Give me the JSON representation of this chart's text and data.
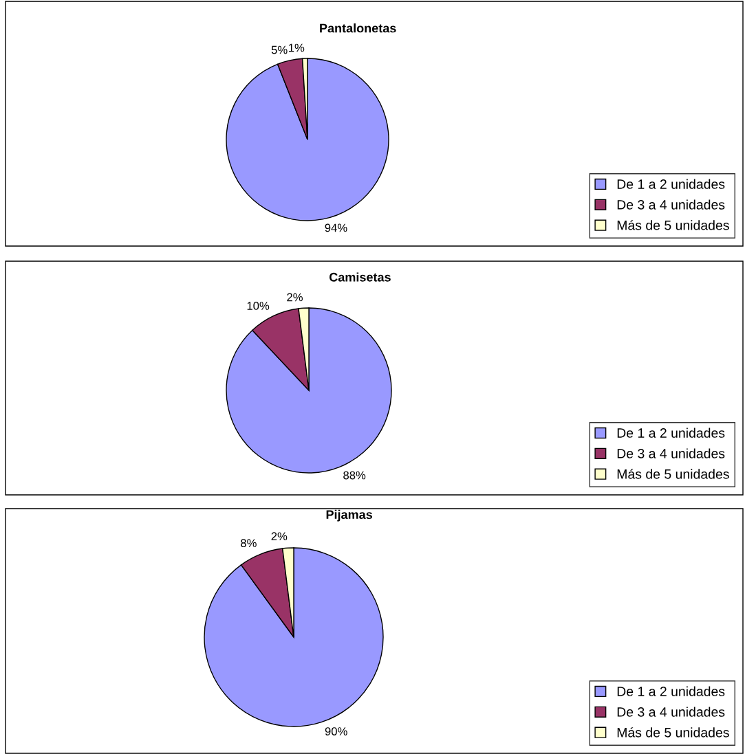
{
  "chart_data": [
    {
      "type": "pie",
      "title": "Pantalonetas",
      "categories": [
        "De 1 a 2 unidades",
        "De 3 a 4 unidades",
        "Más de 5 unidades"
      ],
      "values": [
        94,
        5,
        1
      ],
      "value_labels": [
        "94%",
        "5%",
        "1%"
      ],
      "colors": [
        "#9999ff",
        "#993366",
        "#ffffcc"
      ],
      "legend": "bottom right"
    },
    {
      "type": "pie",
      "title": "Camisetas",
      "categories": [
        "De 1 a 2 unidades",
        "De 3 a 4 unidades",
        "Más de 5 unidades"
      ],
      "values": [
        88,
        10,
        2
      ],
      "value_labels": [
        "88%",
        "10%",
        "2%"
      ],
      "colors": [
        "#9999ff",
        "#993366",
        "#ffffcc"
      ],
      "legend": "bottom right"
    },
    {
      "type": "pie",
      "title": "Pijamas",
      "categories": [
        "De 1 a 2 unidades",
        "De 3 a 4 unidades",
        "Más de 5 unidades"
      ],
      "values": [
        90,
        8,
        2
      ],
      "value_labels": [
        "90%",
        "8%",
        "2%"
      ],
      "colors": [
        "#9999ff",
        "#993366",
        "#ffffcc"
      ],
      "legend": "bottom right"
    }
  ]
}
